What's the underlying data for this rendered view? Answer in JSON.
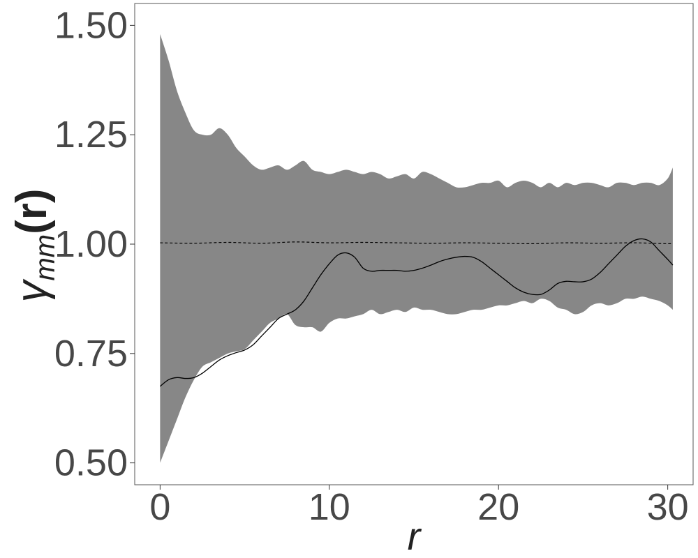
{
  "chart_data": {
    "type": "area",
    "title": "",
    "xlabel": "r",
    "ylabel": {
      "symbol": "γ",
      "subscript": "mm",
      "argument": "(r)"
    },
    "xlim": [
      -1.5,
      31.5
    ],
    "ylim": [
      0.45,
      1.55
    ],
    "x_ticks": [
      0,
      10,
      20,
      30
    ],
    "x_tick_labels": [
      "0",
      "10",
      "20",
      "30"
    ],
    "y_ticks": [
      0.5,
      0.75,
      1.0,
      1.25,
      1.5
    ],
    "y_tick_labels": [
      "0.50",
      "0.75",
      "1.00",
      "1.25",
      "1.50"
    ],
    "grid": false,
    "legend": "none",
    "colors": {
      "envelope": "#878787",
      "observed": "#000000",
      "theoretical": "#000000",
      "tick_text": "#474747",
      "frame": "#555555"
    },
    "series": [
      {
        "role": "envelope",
        "x": [
          0,
          0.5,
          1,
          1.5,
          2,
          2.5,
          3,
          3.5,
          4,
          4.5,
          5,
          5.5,
          6,
          6.5,
          7,
          7.5,
          8,
          8.5,
          9,
          9.5,
          10,
          10.5,
          11,
          11.5,
          12,
          12.5,
          13,
          13.5,
          14,
          14.5,
          15,
          15.5,
          16,
          16.5,
          17,
          17.5,
          18,
          18.5,
          19,
          19.5,
          20,
          20.5,
          21,
          21.5,
          22,
          22.5,
          23,
          23.5,
          24,
          24.5,
          25,
          25.5,
          26,
          26.5,
          27,
          27.5,
          28,
          28.5,
          29,
          29.5,
          30,
          30.3
        ],
        "upper": [
          1.48,
          1.42,
          1.35,
          1.3,
          1.26,
          1.25,
          1.25,
          1.265,
          1.25,
          1.22,
          1.2,
          1.18,
          1.17,
          1.175,
          1.18,
          1.17,
          1.18,
          1.19,
          1.17,
          1.165,
          1.16,
          1.165,
          1.17,
          1.165,
          1.16,
          1.165,
          1.16,
          1.15,
          1.155,
          1.16,
          1.15,
          1.165,
          1.16,
          1.15,
          1.14,
          1.13,
          1.13,
          1.135,
          1.14,
          1.14,
          1.145,
          1.13,
          1.14,
          1.145,
          1.14,
          1.13,
          1.14,
          1.13,
          1.14,
          1.135,
          1.14,
          1.14,
          1.135,
          1.13,
          1.14,
          1.14,
          1.135,
          1.14,
          1.14,
          1.135,
          1.15,
          1.175
        ],
        "lower": [
          0.5,
          0.55,
          0.6,
          0.65,
          0.69,
          0.72,
          0.73,
          0.74,
          0.75,
          0.755,
          0.76,
          0.78,
          0.8,
          0.82,
          0.83,
          0.84,
          0.815,
          0.81,
          0.81,
          0.8,
          0.82,
          0.83,
          0.83,
          0.835,
          0.84,
          0.85,
          0.84,
          0.845,
          0.85,
          0.845,
          0.855,
          0.85,
          0.85,
          0.845,
          0.84,
          0.84,
          0.845,
          0.85,
          0.85,
          0.855,
          0.86,
          0.86,
          0.865,
          0.87,
          0.865,
          0.875,
          0.87,
          0.855,
          0.85,
          0.84,
          0.845,
          0.86,
          0.865,
          0.86,
          0.865,
          0.875,
          0.875,
          0.88,
          0.875,
          0.87,
          0.86,
          0.85
        ]
      },
      {
        "role": "observed",
        "line_style": "solid",
        "x": [
          0,
          0.5,
          1,
          1.5,
          2,
          2.5,
          3,
          3.5,
          4,
          4.5,
          5,
          5.5,
          6,
          6.5,
          7,
          7.5,
          8,
          8.5,
          9,
          9.5,
          10,
          10.5,
          11,
          11.5,
          12,
          12.5,
          13,
          13.5,
          14,
          14.5,
          15,
          15.5,
          16,
          16.5,
          17,
          17.5,
          18,
          18.5,
          19,
          19.5,
          20,
          20.5,
          21,
          21.5,
          22,
          22.5,
          23,
          23.5,
          24,
          24.5,
          25,
          25.5,
          26,
          26.5,
          27,
          27.5,
          28,
          28.5,
          29,
          29.5,
          30,
          30.3
        ],
        "y": [
          0.675,
          0.69,
          0.695,
          0.693,
          0.695,
          0.705,
          0.72,
          0.735,
          0.745,
          0.752,
          0.758,
          0.77,
          0.79,
          0.81,
          0.83,
          0.84,
          0.85,
          0.87,
          0.9,
          0.93,
          0.955,
          0.975,
          0.98,
          0.97,
          0.945,
          0.938,
          0.94,
          0.94,
          0.94,
          0.938,
          0.94,
          0.945,
          0.952,
          0.96,
          0.966,
          0.97,
          0.972,
          0.97,
          0.96,
          0.945,
          0.93,
          0.915,
          0.9,
          0.89,
          0.885,
          0.885,
          0.895,
          0.91,
          0.915,
          0.914,
          0.914,
          0.92,
          0.935,
          0.955,
          0.975,
          0.995,
          1.008,
          1.012,
          1.005,
          0.985,
          0.965,
          0.952
        ]
      },
      {
        "role": "theoretical",
        "line_style": "dashed",
        "x": [
          0,
          2,
          4,
          6,
          8,
          10,
          12,
          14,
          16,
          18,
          20,
          22,
          24,
          26,
          28,
          30,
          30.3
        ],
        "y": [
          1.003,
          1.002,
          1.004,
          1.002,
          1.005,
          1.003,
          1.004,
          1.003,
          1.002,
          1.003,
          1.002,
          1.001,
          1.003,
          1.002,
          1.003,
          1.001,
          1.002
        ]
      }
    ]
  }
}
